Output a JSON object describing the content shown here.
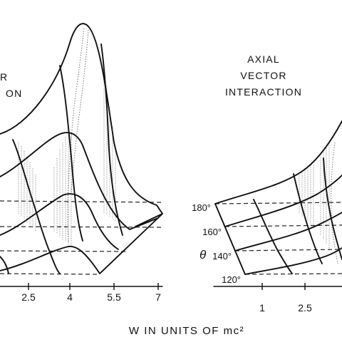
{
  "chart_data": {
    "type": "surface",
    "title": "",
    "xlabel": "W IN UNITS OF mc²",
    "panels": [
      {
        "name": "left-panel",
        "label_lines": [
          "R",
          "ON"
        ],
        "x_ticks": [
          "2.5",
          "4",
          "5.5",
          "7"
        ]
      },
      {
        "name": "right-panel",
        "label_lines": [
          "AXIAL",
          "VECTOR",
          "INTERACTION"
        ],
        "x_ticks": [
          "1",
          "2.5"
        ],
        "theta_label": "θ",
        "theta_ticks": [
          "180°",
          "160°",
          "140°",
          "120°"
        ]
      }
    ],
    "grid": false,
    "legend": "none"
  }
}
